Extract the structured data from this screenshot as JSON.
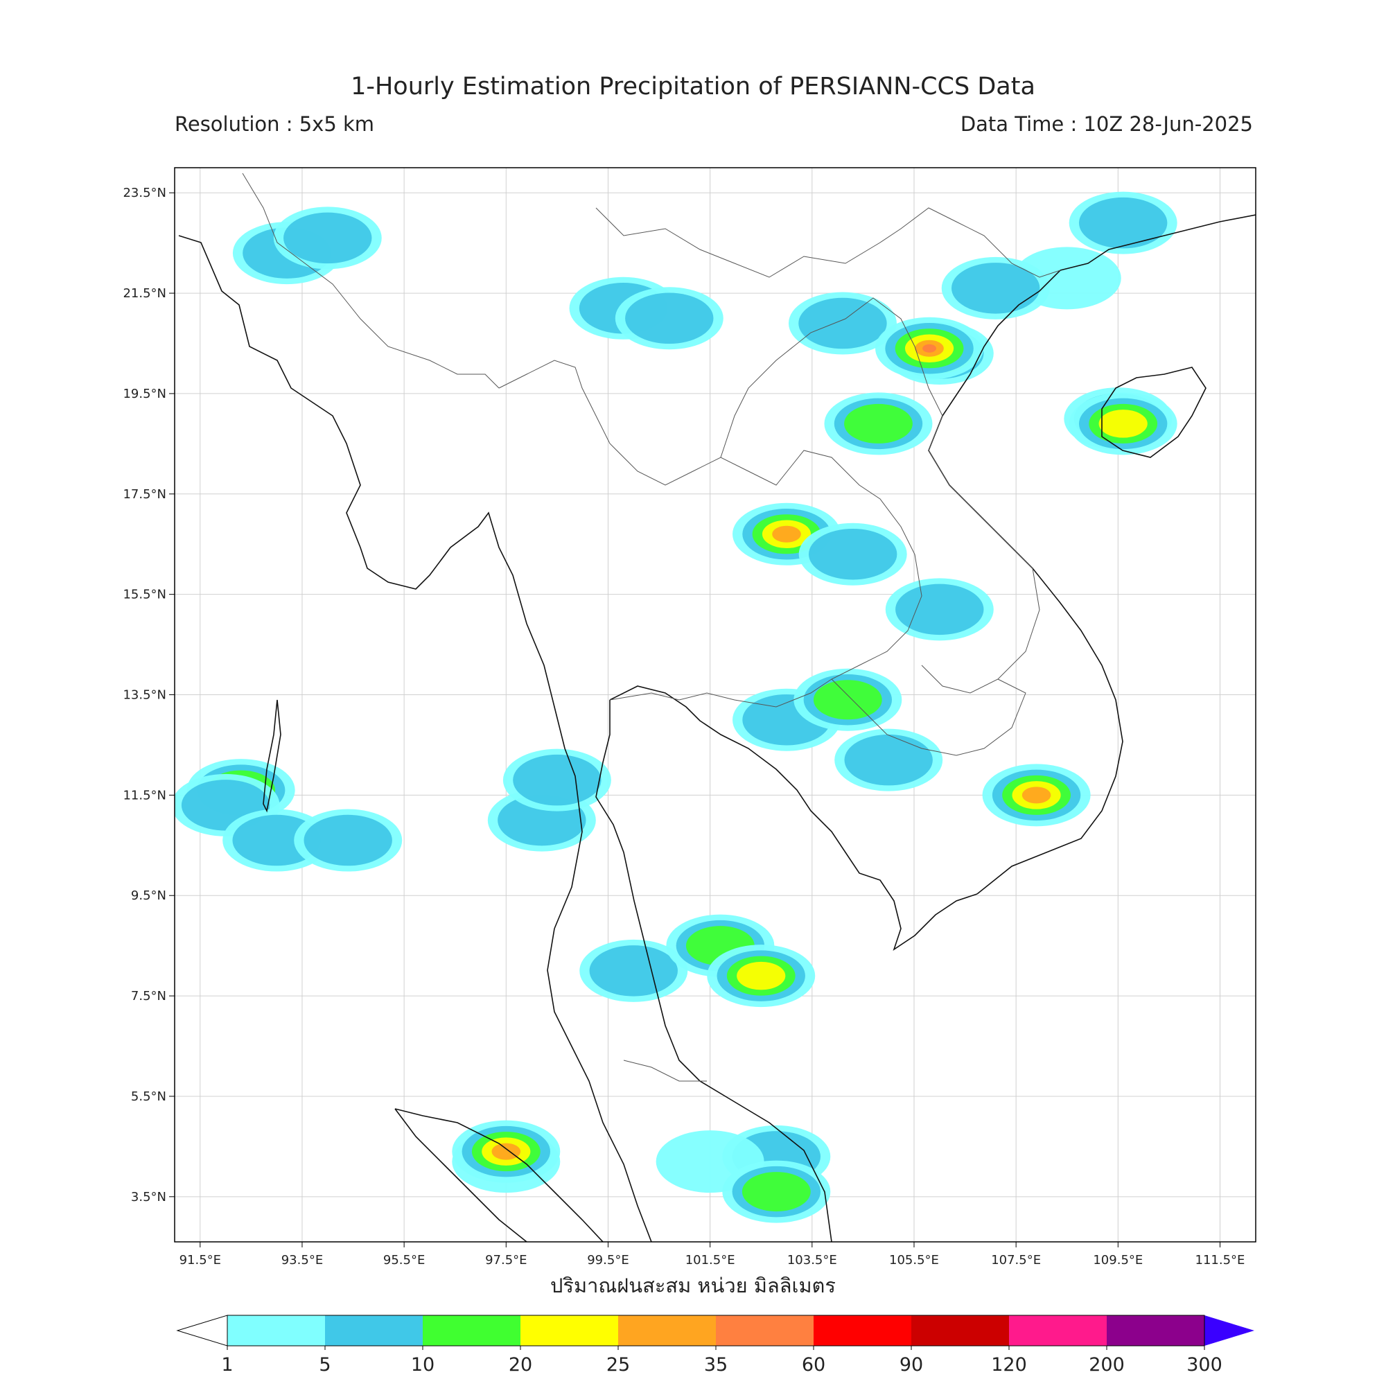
{
  "title": "1-Hourly Estimation Precipitation of PERSIANN-CCS Data",
  "resolution": "Resolution : 5x5 km",
  "data_time": "Data Time : 10Z 28-Jun-2025",
  "map": {
    "lon_labels": [
      "91.5°E",
      "93.5°E",
      "95.5°E",
      "97.5°E",
      "99.5°E",
      "101.5°E",
      "103.5°E",
      "105.5°E",
      "107.5°E",
      "109.5°E",
      "111.5°E"
    ],
    "lat_labels": [
      "23.5°N",
      "21.5°N",
      "19.5°N",
      "17.5°N",
      "15.5°N",
      "13.5°N",
      "11.5°N",
      "9.5°N",
      "7.5°N",
      "5.5°N",
      "3.5°N"
    ],
    "lon_min": 91.0,
    "lon_max": 112.2,
    "lat_min": 2.6,
    "lat_max": 24.0,
    "rain_cells": [
      {
        "lon": 92.3,
        "lat": 11.6,
        "cat": 2
      },
      {
        "lon": 92.0,
        "lat": 11.3,
        "cat": 1
      },
      {
        "lon": 93.0,
        "lat": 10.6,
        "cat": 1
      },
      {
        "lon": 94.4,
        "lat": 10.6,
        "cat": 1
      },
      {
        "lon": 98.2,
        "lat": 11.0,
        "cat": 1
      },
      {
        "lon": 98.5,
        "lat": 11.8,
        "cat": 1
      },
      {
        "lon": 99.8,
        "lat": 21.2,
        "cat": 1
      },
      {
        "lon": 100.7,
        "lat": 21.0,
        "cat": 1
      },
      {
        "lon": 104.1,
        "lat": 20.9,
        "cat": 1
      },
      {
        "lon": 106.0,
        "lat": 20.3,
        "cat": 2
      },
      {
        "lon": 105.8,
        "lat": 20.4,
        "cat": 5
      },
      {
        "lon": 104.8,
        "lat": 18.9,
        "cat": 2
      },
      {
        "lon": 108.5,
        "lat": 21.8,
        "cat": 0
      },
      {
        "lon": 107.1,
        "lat": 21.6,
        "cat": 1
      },
      {
        "lon": 109.5,
        "lat": 19.0,
        "cat": 2
      },
      {
        "lon": 109.6,
        "lat": 18.9,
        "cat": 3
      },
      {
        "lon": 109.6,
        "lat": 22.9,
        "cat": 1
      },
      {
        "lon": 103.0,
        "lat": 16.7,
        "cat": 4
      },
      {
        "lon": 104.3,
        "lat": 16.3,
        "cat": 1
      },
      {
        "lon": 103.0,
        "lat": 13.0,
        "cat": 1
      },
      {
        "lon": 104.2,
        "lat": 13.4,
        "cat": 2
      },
      {
        "lon": 105.0,
        "lat": 12.2,
        "cat": 1
      },
      {
        "lon": 107.9,
        "lat": 11.5,
        "cat": 4
      },
      {
        "lon": 106.0,
        "lat": 15.2,
        "cat": 1
      },
      {
        "lon": 102.8,
        "lat": 4.3,
        "cat": 1
      },
      {
        "lon": 101.5,
        "lat": 4.2,
        "cat": 0
      },
      {
        "lon": 102.8,
        "lat": 3.6,
        "cat": 2
      },
      {
        "lon": 97.5,
        "lat": 4.2,
        "cat": 0
      },
      {
        "lon": 97.5,
        "lat": 4.4,
        "cat": 4
      },
      {
        "lon": 93.2,
        "lat": 22.3,
        "cat": 1
      },
      {
        "lon": 94.0,
        "lat": 22.6,
        "cat": 1
      },
      {
        "lon": 100.0,
        "lat": 8.0,
        "cat": 1
      },
      {
        "lon": 101.7,
        "lat": 8.5,
        "cat": 2
      },
      {
        "lon": 102.5,
        "lat": 7.9,
        "cat": 3
      }
    ]
  },
  "colorbar": {
    "label": "ปริมาณฝนสะสม หน่วย มิลลิเมตร",
    "ticks": [
      "1",
      "5",
      "10",
      "20",
      "25",
      "35",
      "60",
      "90",
      "120",
      "200",
      "300"
    ],
    "colors": [
      "#80ffff",
      "#40c8e8",
      "#40ff30",
      "#ffff00",
      "#ffa520",
      "#ff8040",
      "#ff0000",
      "#cc0000",
      "#ff1a8c",
      "#8c008c"
    ],
    "extend_low": "#ffffff",
    "extend_high": "#3a00ff"
  }
}
